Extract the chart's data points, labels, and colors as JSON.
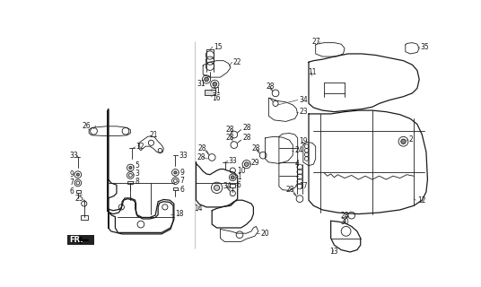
{
  "bg_color": "#ffffff",
  "line_color": "#1a1a1a",
  "figsize": [
    5.36,
    3.2
  ],
  "dpi": 100
}
